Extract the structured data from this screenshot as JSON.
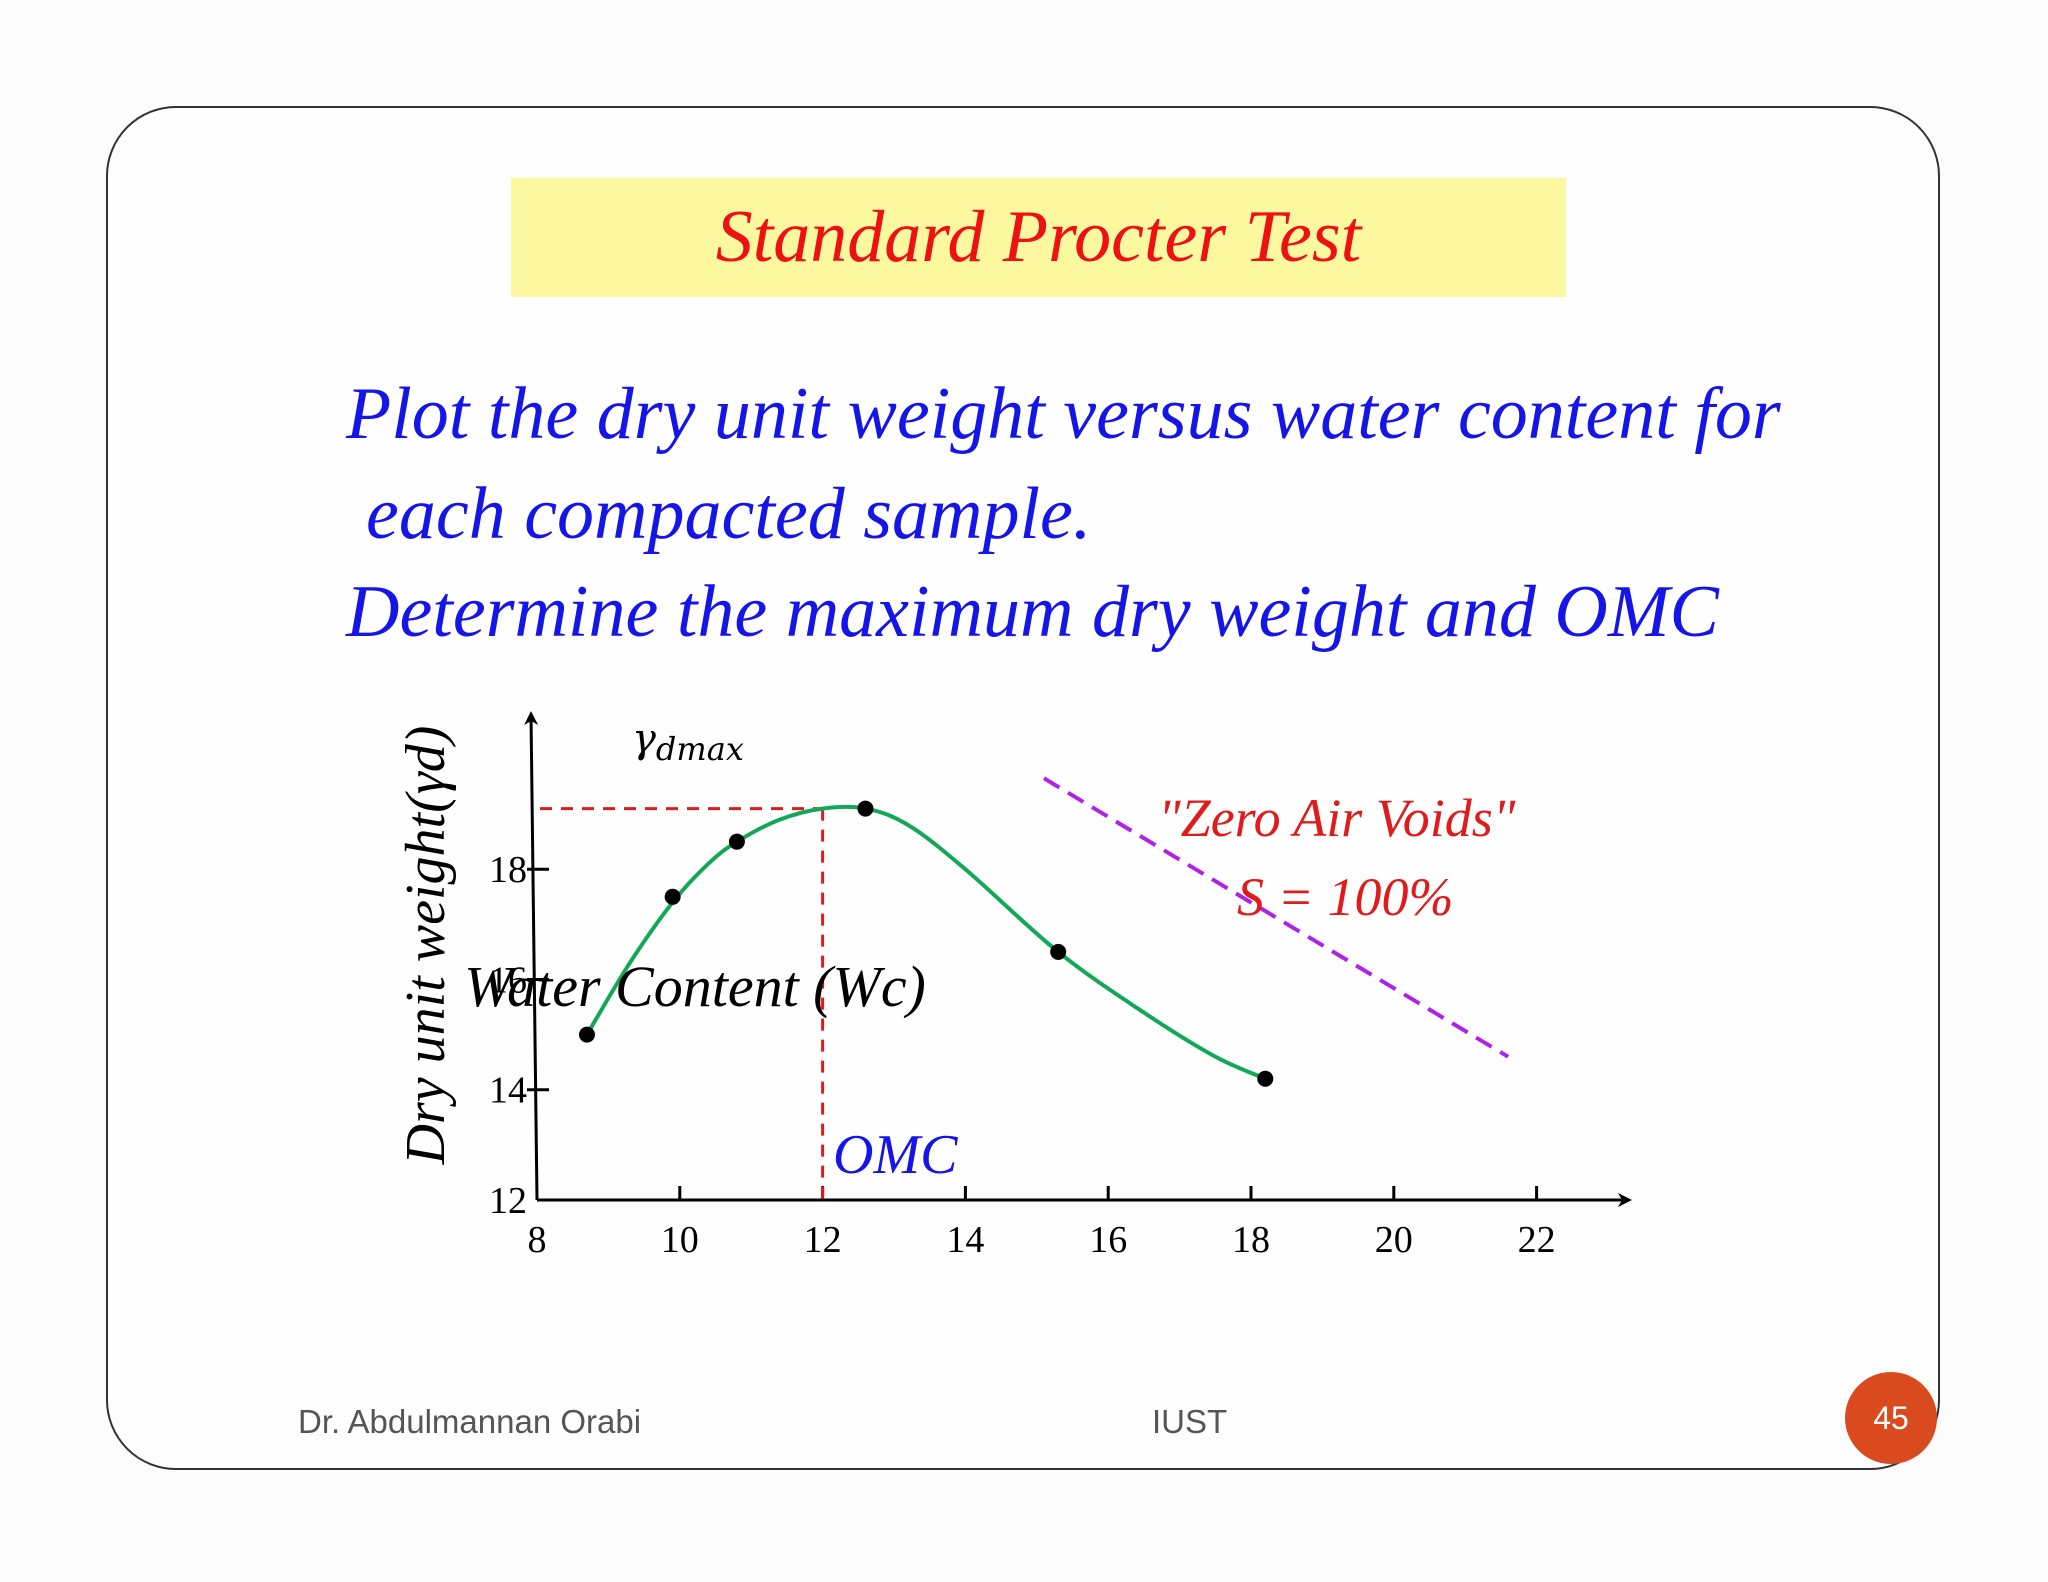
{
  "slide": {
    "title": "Standard Procter Test",
    "body_lines": [
      "Plot the dry unit weight versus water content for",
      "each compacted sample.",
      "Determine the maximum dry weight and OMC"
    ],
    "footer_left": "Dr. Abdulmannan Orabi",
    "footer_center": "IUST",
    "page_number": "45"
  },
  "colors": {
    "title_text": "#ee1111",
    "title_background": "#fbf8a0",
    "body_text": "#1515e8",
    "curve": "#13a858",
    "points": "#000000",
    "dmax_guides": "#e01b1b",
    "zero_air_voids_line": "#b022e8",
    "zero_air_voids_text": "#e01b1b",
    "omc_text": "#1515e8",
    "page_badge": "#d94a1e"
  },
  "chart_data": {
    "type": "scatter",
    "xlabel": "Water Content (Wc)",
    "ylabel": "Dry unit weight(γd)",
    "xlim": [
      8,
      23
    ],
    "ylim": [
      12,
      19.8
    ],
    "x_ticks": [
      "8",
      "10",
      "12",
      "14",
      "16",
      "18",
      "20",
      "22"
    ],
    "x_tick_values": [
      8,
      10,
      12,
      14,
      16,
      18,
      20,
      22
    ],
    "y_ticks": [
      "12",
      "14",
      "16",
      "18"
    ],
    "y_tick_values": [
      12,
      14,
      16,
      18
    ],
    "grid": false,
    "series": [
      {
        "points": [
          {
            "x": 8.7,
            "y": 15.0
          },
          {
            "x": 9.9,
            "y": 17.5
          },
          {
            "x": 10.8,
            "y": 18.5
          },
          {
            "x": 12.6,
            "y": 19.1
          },
          {
            "x": 15.3,
            "y": 16.5
          },
          {
            "x": 18.2,
            "y": 14.2
          }
        ],
        "curve": [
          {
            "x": 8.7,
            "y": 15.0
          },
          {
            "x": 9.3,
            "y": 16.3
          },
          {
            "x": 9.9,
            "y": 17.4
          },
          {
            "x": 10.4,
            "y": 18.1
          },
          {
            "x": 10.8,
            "y": 18.5
          },
          {
            "x": 11.4,
            "y": 18.9
          },
          {
            "x": 12.0,
            "y": 19.1
          },
          {
            "x": 12.6,
            "y": 19.1
          },
          {
            "x": 13.2,
            "y": 18.8
          },
          {
            "x": 14.0,
            "y": 18.0
          },
          {
            "x": 15.3,
            "y": 16.5
          },
          {
            "x": 16.5,
            "y": 15.4
          },
          {
            "x": 17.5,
            "y": 14.6
          },
          {
            "x": 18.2,
            "y": 14.2
          }
        ]
      }
    ],
    "annotations": {
      "gamma_dmax": {
        "label": "γdmax",
        "y": 19.1
      },
      "omc": {
        "label": "OMC",
        "x": 12.0
      },
      "zero_air_voids": {
        "label_line1": "\"Zero Air Voids\"",
        "label_line2": "S = 100%",
        "line": [
          {
            "x": 15.1,
            "y": 19.65
          },
          {
            "x": 21.6,
            "y": 14.6
          }
        ]
      }
    }
  }
}
